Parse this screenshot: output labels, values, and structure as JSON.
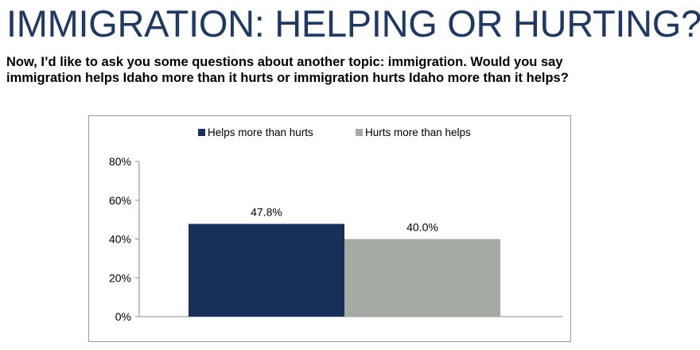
{
  "header": {
    "title": "IMMIGRATION: HELPING OR HURTING?",
    "question_line1": "Now, I’d like to ask you some questions about another topic: immigration.  Would you say",
    "question_line2": "immigration helps Idaho more than it hurts or immigration hurts Idaho more than it helps?"
  },
  "colors": {
    "title": "#1f3864",
    "helps": "#17305a",
    "hurts": "#a5aaa3"
  },
  "chart_data": {
    "type": "bar",
    "title": "",
    "xlabel": "",
    "ylabel": "",
    "categories": [
      ""
    ],
    "series": [
      {
        "name": "Helps more than hurts",
        "values": [
          47.8
        ],
        "color": "#17305a"
      },
      {
        "name": "Hurts more than helps",
        "values": [
          40.0
        ],
        "color": "#a5aaa3"
      }
    ],
    "data_labels": [
      "47.8%",
      "40.0%"
    ],
    "ylim": [
      0,
      80
    ],
    "yticks": [
      0,
      20,
      40,
      60,
      80
    ],
    "ytick_labels": [
      "0%",
      "20%",
      "40%",
      "60%",
      "80%"
    ],
    "grid": false,
    "legend": "top-center"
  }
}
